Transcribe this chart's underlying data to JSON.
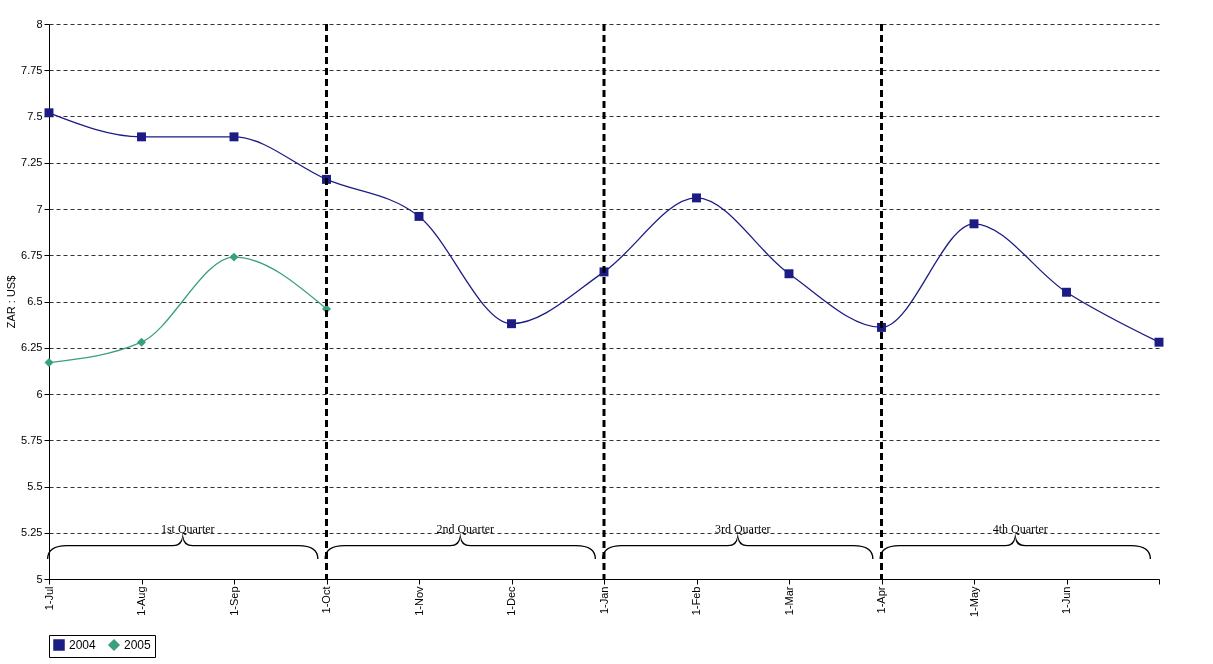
{
  "chart_data": {
    "type": "line",
    "ylabel": "ZAR : US$",
    "categories": [
      "1-Jul",
      "1-Aug",
      "1-Sep",
      "1-Oct",
      "1-Nov",
      "1-Dec",
      "1-Jan",
      "1-Feb",
      "1-Mar",
      "1-Apr",
      "1-May",
      "1-Jun",
      null
    ],
    "series": [
      {
        "name": "2004",
        "color": "#1c1c84",
        "marker": "square",
        "values": [
          7.52,
          7.39,
          7.39,
          7.16,
          6.96,
          6.38,
          6.66,
          7.06,
          6.65,
          6.36,
          6.92,
          6.55,
          6.28
        ]
      },
      {
        "name": "2005",
        "color": "#3aa07c",
        "marker": "diamond",
        "values": [
          6.17,
          6.28,
          6.74,
          6.46,
          null,
          null,
          null,
          null,
          null,
          null,
          null,
          null,
          null
        ]
      }
    ],
    "ylim": [
      5,
      8
    ],
    "yticks": [
      5,
      5.25,
      5.5,
      5.75,
      6,
      6.25,
      6.5,
      6.75,
      7,
      7.25,
      7.5,
      7.75,
      8
    ],
    "grid": "y",
    "legend": "bottom",
    "line_style": "solid",
    "ref_lines": [
      {
        "axis": "x",
        "value": "1-Oct",
        "color": "#000000",
        "line_style": "dashed"
      },
      {
        "axis": "x",
        "value": "1-Jan",
        "color": "#000000",
        "line_style": "dashed"
      },
      {
        "axis": "x",
        "value": "1-Apr",
        "color": "#000000",
        "line_style": "dashed"
      }
    ],
    "annotations": [
      "1st Quarter",
      "2nd Quarter",
      "3rd Quarter",
      "4th Quarter"
    ]
  }
}
